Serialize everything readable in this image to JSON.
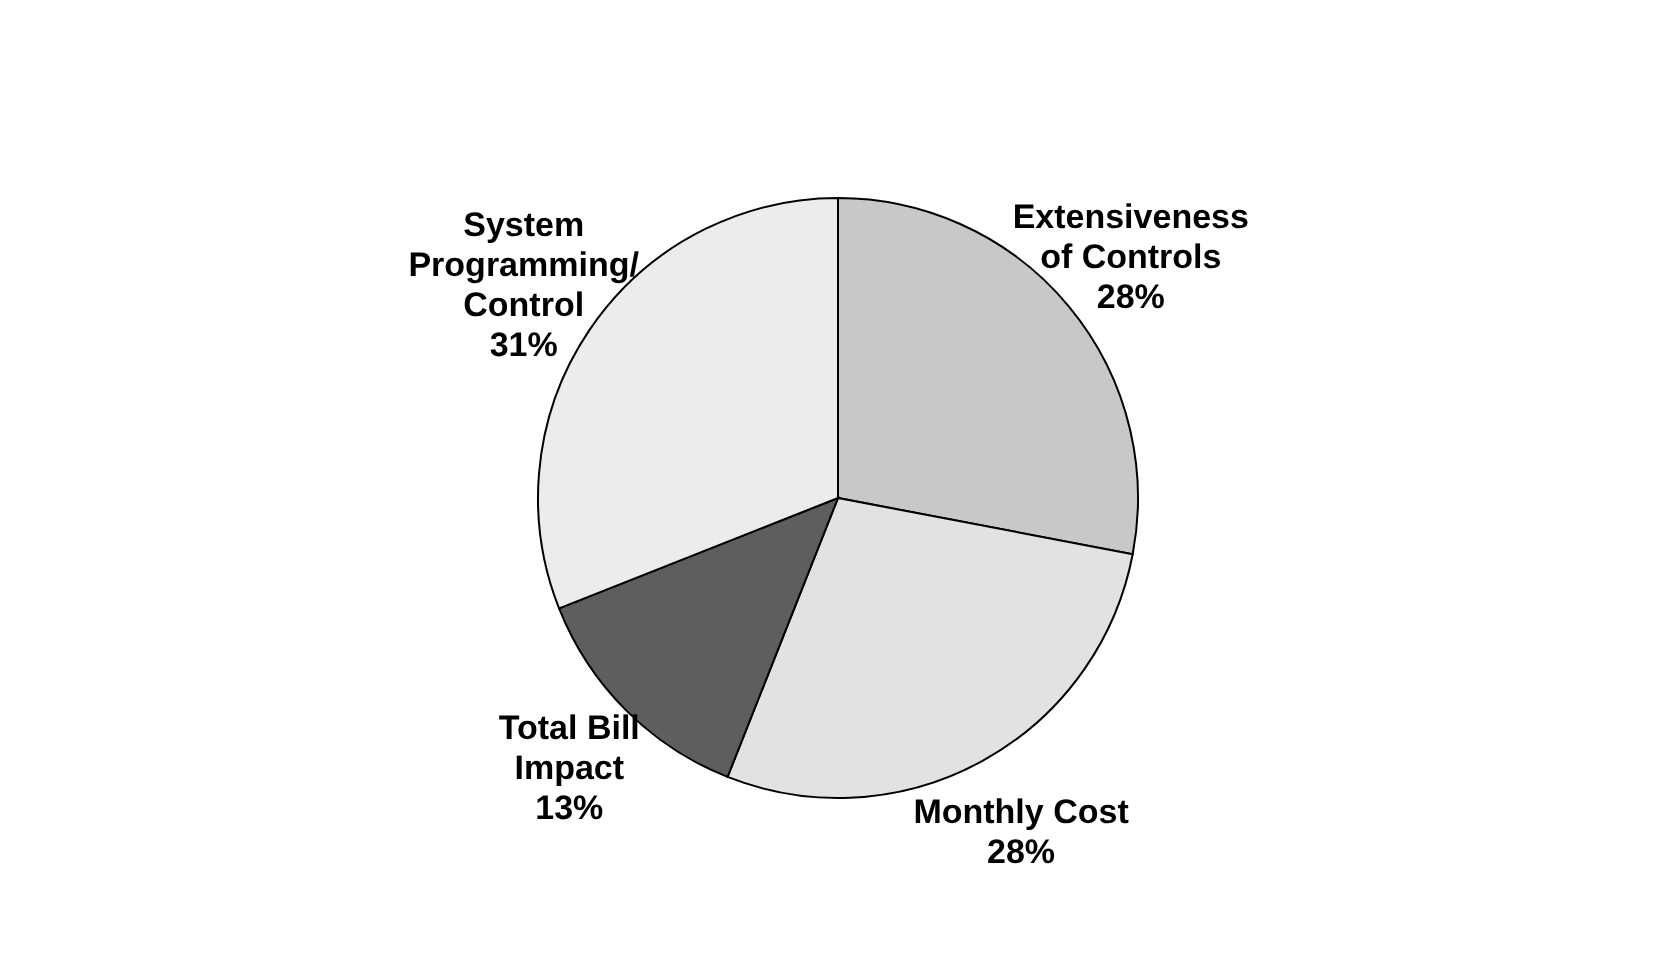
{
  "chart_data": {
    "type": "pie",
    "categories": [
      "Extensiveness of Controls",
      "Monthly Cost",
      "Total Bill Impact",
      "System Programming/Control"
    ],
    "values": [
      28,
      28,
      13,
      31
    ],
    "value_labels": [
      "28%",
      "28%",
      "13%",
      "31%"
    ],
    "colors": [
      "#c8c8c8",
      "#e2e2e2",
      "#5e5e5e",
      "#ececec"
    ],
    "legend": false
  }
}
